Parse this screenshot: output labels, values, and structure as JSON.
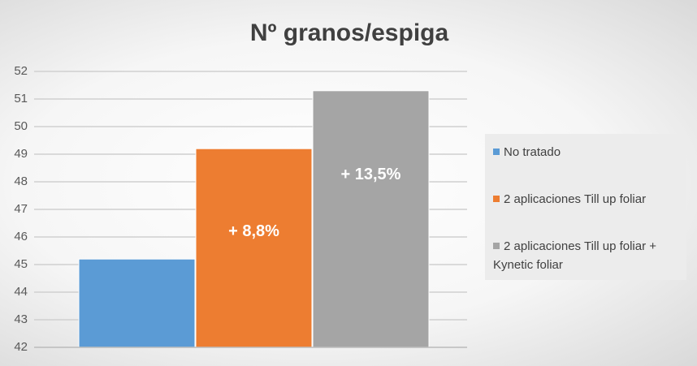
{
  "chart_data": {
    "type": "bar",
    "title": "Nº granos/espiga",
    "categories": [
      null
    ],
    "series": [
      {
        "name": "No tratado",
        "color": "#5b9bd5",
        "values": [
          45.2
        ]
      },
      {
        "name": "2 aplicaciones Till up foliar",
        "color": "#ed7d31",
        "values": [
          49.2
        ]
      },
      {
        "name": "2 aplicaciones Till up foliar + Kynetic foliar",
        "color": "#a5a5a5",
        "values": [
          51.3
        ]
      }
    ],
    "annotations": [
      "+ 8,8%",
      "+ 13,5%"
    ],
    "ylim": [
      42,
      52
    ],
    "yticks": [
      42,
      43,
      44,
      45,
      46,
      47,
      48,
      49,
      50,
      51,
      52
    ],
    "grid": true,
    "legend": "right"
  }
}
